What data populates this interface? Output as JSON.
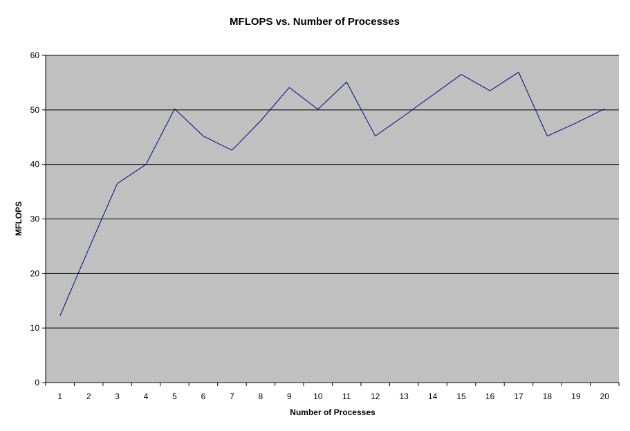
{
  "chart_data": {
    "type": "line",
    "title": "MFLOPS vs. Number of Processes",
    "xlabel": "Number of Processes",
    "ylabel": "MFLOPS",
    "categories": [
      "1",
      "2",
      "3",
      "4",
      "5",
      "6",
      "7",
      "8",
      "9",
      "10",
      "11",
      "12",
      "13",
      "14",
      "15",
      "16",
      "17",
      "18",
      "19",
      "20"
    ],
    "series": [
      {
        "values": [
          12.2,
          24.5,
          36.5,
          40.0,
          50.2,
          45.2,
          42.6,
          48.0,
          54.1,
          50.1,
          55.1,
          45.2,
          48.9,
          52.7,
          56.5,
          53.5,
          56.9,
          45.2,
          47.6,
          50.2
        ]
      }
    ],
    "ylim": [
      0,
      60
    ],
    "yticks": [
      0,
      10,
      20,
      30,
      40,
      50,
      60
    ],
    "grid": true,
    "legend": "none",
    "colors": {
      "plot_background": "#c0c0c0",
      "line": "#000080",
      "gridline": "#000000"
    }
  }
}
